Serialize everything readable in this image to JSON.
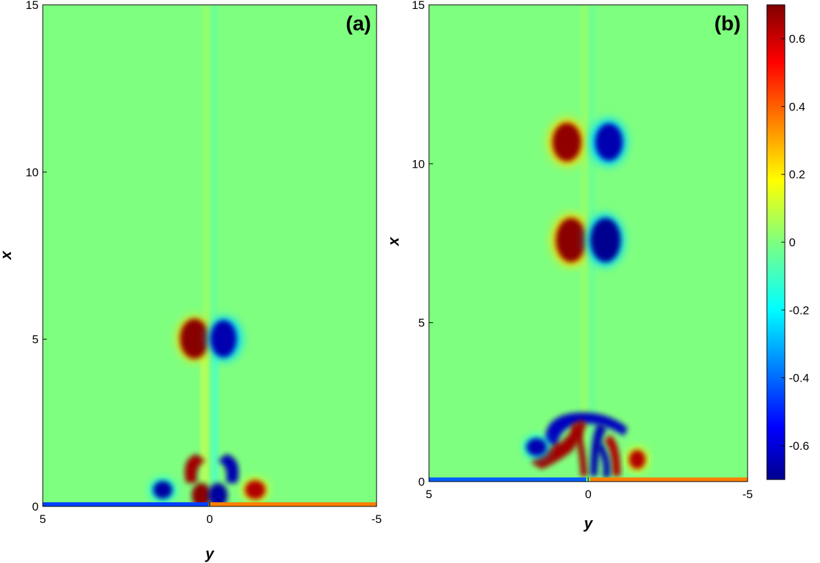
{
  "chart_data": [
    {
      "type": "heatmap",
      "panel_label": "(a)",
      "xlabel": "y",
      "ylabel": "x",
      "xlim": [
        5,
        -5
      ],
      "ylim": [
        0,
        15
      ],
      "xticks": [
        "5",
        "0",
        "-5"
      ],
      "yticks": [
        "0",
        "5",
        "10",
        "15"
      ],
      "features": [
        {
          "kind": "vortex",
          "sign": "positive",
          "y": 0.4,
          "x": 4.9
        },
        {
          "kind": "vortex",
          "sign": "negative",
          "y": -0.4,
          "x": 4.9
        },
        {
          "kind": "vortex",
          "sign": "positive",
          "y": 0.35,
          "x": 1.0
        },
        {
          "kind": "vortex",
          "sign": "negative",
          "y": -0.35,
          "x": 1.0
        },
        {
          "kind": "vortex",
          "sign": "negative",
          "y": 1.4,
          "x": 0.5
        },
        {
          "kind": "vortex",
          "sign": "positive",
          "y": -1.4,
          "x": 0.5
        }
      ]
    },
    {
      "type": "heatmap",
      "panel_label": "(b)",
      "xlabel": "y",
      "ylabel": "x",
      "xlim": [
        5,
        -5
      ],
      "ylim": [
        0,
        15
      ],
      "xticks": [
        "5",
        "0",
        "-5"
      ],
      "yticks": [
        "0",
        "5",
        "10",
        "15"
      ],
      "features": [
        {
          "kind": "vortex",
          "sign": "positive",
          "y": 0.6,
          "x": 10.7
        },
        {
          "kind": "vortex",
          "sign": "negative",
          "y": -0.6,
          "x": 10.7
        },
        {
          "kind": "vortex",
          "sign": "positive",
          "y": 0.6,
          "x": 7.6
        },
        {
          "kind": "vortex",
          "sign": "negative",
          "y": -0.6,
          "x": 7.6
        },
        {
          "kind": "vortex",
          "sign": "negative",
          "y": 1.6,
          "x": 1.0
        },
        {
          "kind": "vortex",
          "sign": "positive",
          "y": -1.6,
          "x": 0.7
        }
      ]
    }
  ],
  "colorbar": {
    "colormap": "jet",
    "range": [
      -0.7,
      0.7
    ],
    "ticks": [
      0.6,
      0.4,
      0.2,
      0,
      -0.2,
      -0.4,
      -0.6
    ],
    "tick_labels": [
      "0.6",
      "0.4",
      "0.2",
      "0",
      "-0.2",
      "-0.4",
      "-0.6"
    ],
    "colors": [
      "#00008f",
      "#0000ff",
      "#0080ff",
      "#00ffff",
      "#80ff80",
      "#ffff00",
      "#ff8000",
      "#ff0000",
      "#800000"
    ]
  }
}
